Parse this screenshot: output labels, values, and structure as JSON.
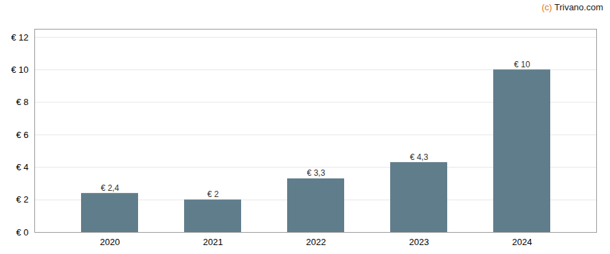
{
  "chart_data": {
    "type": "bar",
    "categories": [
      "2020",
      "2021",
      "2022",
      "2023",
      "2024"
    ],
    "values": [
      2.4,
      2.0,
      3.3,
      4.3,
      10.0
    ],
    "value_labels": [
      "€ 2,4",
      "€ 2",
      "€ 3,3",
      "€ 4,3",
      "€ 10"
    ],
    "data_labels": true,
    "color": "#607d8b",
    "ylim": [
      0,
      12.5
    ],
    "yticks": [
      {
        "value": 0,
        "label": "€ 0"
      },
      {
        "value": 2,
        "label": "€ 2"
      },
      {
        "value": 4,
        "label": "€ 4"
      },
      {
        "value": 6,
        "label": "€ 6"
      },
      {
        "value": 8,
        "label": "€ 8"
      },
      {
        "value": 10,
        "label": "€ 10"
      },
      {
        "value": 12,
        "label": "€ 12"
      }
    ],
    "grid": true,
    "annotations": [
      {
        "text": "(c) ",
        "color": "#e07820"
      },
      {
        "text": "Trivano.com",
        "color": "#1a1a1a"
      }
    ]
  }
}
